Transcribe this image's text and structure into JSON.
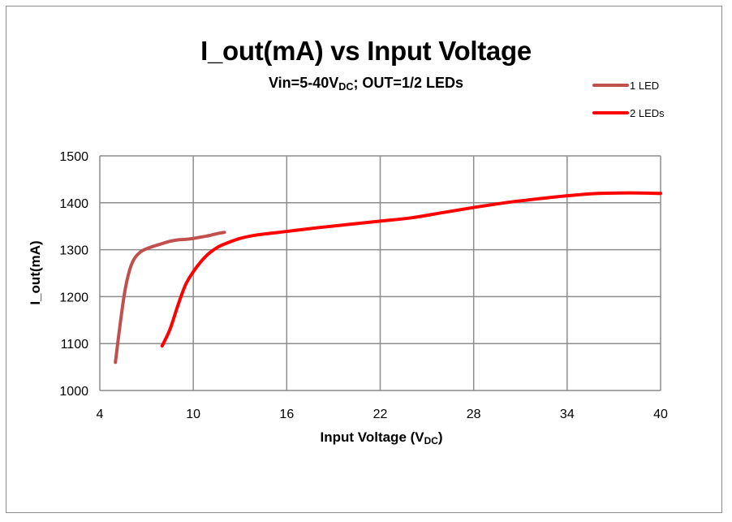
{
  "chart_data": {
    "type": "line",
    "title": "I_out(mA) vs Input Voltage",
    "subtitle": {
      "prefix": "Vin=5-40V",
      "sub": "DC",
      "suffix": "; OUT=1/2 LEDs"
    },
    "xlabel": {
      "prefix": "Input Voltage (V",
      "sub": "DC",
      "suffix": ")"
    },
    "ylabel": "I_out(mA)",
    "xlim": [
      4,
      40
    ],
    "ylim": [
      1000,
      1500
    ],
    "xticks": [
      4,
      10,
      16,
      22,
      28,
      34,
      40
    ],
    "yticks": [
      1000,
      1100,
      1200,
      1300,
      1400,
      1500
    ],
    "grid": true,
    "legend_position": "top-right",
    "series": [
      {
        "name": "1 LED",
        "color": "#c0504d",
        "x": [
          5.0,
          5.3,
          5.6,
          5.9,
          6.2,
          6.6,
          7.0,
          7.5,
          8.0,
          8.5,
          9.0,
          9.5,
          10.0,
          10.5,
          11.0,
          11.5,
          12.0
        ],
        "y": [
          1060,
          1140,
          1210,
          1255,
          1280,
          1295,
          1302,
          1308,
          1313,
          1318,
          1321,
          1322,
          1324,
          1327,
          1330,
          1334,
          1337
        ]
      },
      {
        "name": "2 LEDs",
        "color": "#ff0000",
        "x": [
          8.0,
          8.5,
          9.0,
          9.5,
          10.0,
          10.5,
          11.0,
          11.5,
          12.0,
          13.0,
          14.0,
          16.0,
          18.0,
          20.0,
          22.0,
          24.0,
          26.0,
          28.0,
          30.0,
          32.0,
          34.0,
          36.0,
          38.0,
          40.0
        ],
        "y": [
          1095,
          1130,
          1180,
          1225,
          1253,
          1275,
          1292,
          1304,
          1312,
          1324,
          1331,
          1339,
          1347,
          1354,
          1361,
          1368,
          1379,
          1390,
          1400,
          1408,
          1415,
          1420,
          1421,
          1420
        ]
      }
    ]
  },
  "legend": [
    {
      "label": "1 LED",
      "color": "#c0504d"
    },
    {
      "label": "2 LEDs",
      "color": "#ff0000"
    }
  ],
  "colors": {
    "grid": "#8c8c8c",
    "frame": "#8c8c8c",
    "background": "#ffffff"
  }
}
